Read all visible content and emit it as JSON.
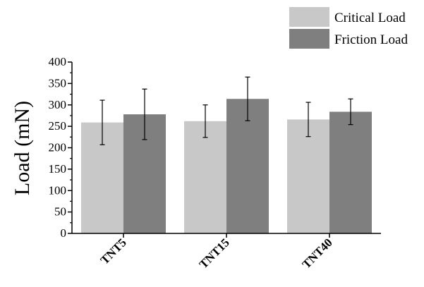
{
  "chart_data": {
    "type": "bar",
    "title": "",
    "xlabel": "",
    "ylabel": "Load (mN)",
    "ylim": [
      0,
      400
    ],
    "yticks": [
      0,
      50,
      100,
      150,
      200,
      250,
      300,
      350,
      400
    ],
    "grid": false,
    "legend_position": "top-right",
    "categories": [
      "TNT5",
      "TNT15",
      "TNT40"
    ],
    "series": [
      {
        "name": "Critical Load",
        "color": "#c8c8c8",
        "values": [
          259,
          262,
          266
        ],
        "errors": [
          52,
          38,
          40
        ]
      },
      {
        "name": "Friction Load",
        "color": "#7f7f7f",
        "values": [
          278,
          314,
          284
        ],
        "errors": [
          59,
          51,
          30
        ]
      }
    ]
  }
}
